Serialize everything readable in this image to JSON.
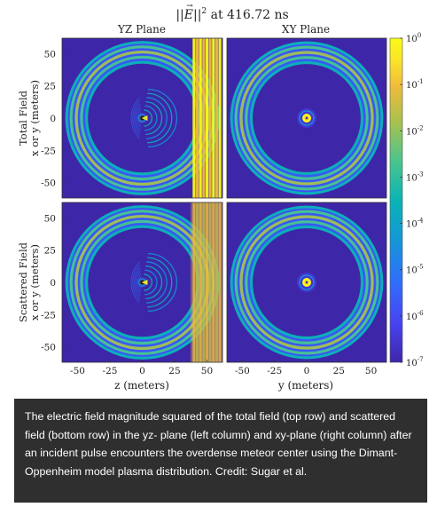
{
  "figure": {
    "title_html": "||E⃗||² at 416.72 ns",
    "title_norm": "||",
    "title_E": "E",
    "title_sup": "2",
    "title_rest": " at 416.72 ns",
    "col_titles": [
      "YZ Plane",
      "XY Plane"
    ],
    "row_labels": [
      "Total Field",
      "Scattered Field"
    ],
    "y_axis_label": "x or y (meters)",
    "x_axis_labels": [
      "z (meters)",
      "y (meters)"
    ],
    "y_ticks": [
      "50",
      "25",
      "0",
      "-25",
      "-50"
    ],
    "x_ticks": [
      "-50",
      "-25",
      "0",
      "25",
      "50"
    ],
    "colorbar_ticks": [
      {
        "base": "10",
        "exp": "0"
      },
      {
        "base": "10",
        "exp": "-1"
      },
      {
        "base": "10",
        "exp": "-2"
      },
      {
        "base": "10",
        "exp": "-3"
      },
      {
        "base": "10",
        "exp": "-4"
      },
      {
        "base": "10",
        "exp": "-5"
      },
      {
        "base": "10",
        "exp": "-6"
      },
      {
        "base": "10",
        "exp": "-7"
      }
    ],
    "colormap": [
      "#3e26a8",
      "#4743f0",
      "#2f6ffb",
      "#1497d6",
      "#0bb4b4",
      "#4ac58d",
      "#a7c14f",
      "#f0bb3a",
      "#fbe32a",
      "#f9fb14"
    ]
  },
  "caption": "The electric field magnitude squared of the total field (top row) and scattered field (bottom row) in the yz- plane (left column) and xy-plane (right column) after an incident pulse encounters the overdense meteor center using the Dimant-Oppenheim model plasma distribution. Credit: Sugar et al."
}
